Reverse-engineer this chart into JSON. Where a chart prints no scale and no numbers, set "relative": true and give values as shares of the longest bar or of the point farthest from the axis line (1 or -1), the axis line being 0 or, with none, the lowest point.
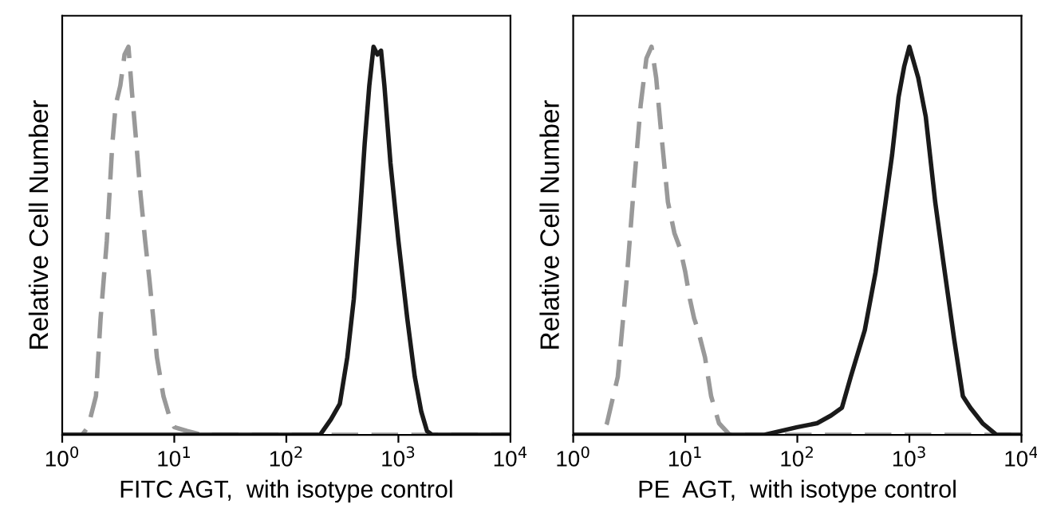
{
  "chart_data": [
    {
      "type": "line",
      "xlabel": "FITC AGT,  with isotype control",
      "ylabel": "Relative Cell Number",
      "relative": true,
      "log": "x",
      "xlim": [
        1,
        10000
      ],
      "xticks": [
        {
          "value": 1,
          "label": "10$^{0}$"
        },
        {
          "value": 10,
          "label": "10$^{1}$"
        },
        {
          "value": 100,
          "label": "10$^{2}$"
        },
        {
          "value": 1000,
          "label": "10$^{3}$"
        },
        {
          "value": 10000,
          "label": "10$^{4}$"
        }
      ],
      "tick_labels": "x",
      "grid": false,
      "legend": false,
      "series": [
        {
          "color": "#999999",
          "line_style": "dashed",
          "x": [
            1,
            1.5,
            1.7,
            2.0,
            2.2,
            2.5,
            2.8,
            3.0,
            3.3,
            3.6,
            3.9,
            4.2,
            4.5,
            5.0,
            5.5,
            6,
            6.5,
            7,
            8,
            9,
            10,
            13,
            18,
            10000
          ],
          "values": [
            0,
            0,
            0.02,
            0.1,
            0.3,
            0.5,
            0.75,
            0.85,
            0.9,
            0.98,
            1.0,
            0.88,
            0.78,
            0.62,
            0.5,
            0.4,
            0.3,
            0.2,
            0.1,
            0.05,
            0.02,
            0.01,
            0,
            0
          ]
        },
        {
          "color": "#1a1a1a",
          "line_style": "solid",
          "x": [
            1,
            200,
            250,
            300,
            350,
            400,
            450,
            500,
            550,
            600,
            650,
            700,
            750,
            850,
            1000,
            1200,
            1400,
            1600,
            1800,
            2000,
            10000
          ],
          "values": [
            0,
            0,
            0.04,
            0.08,
            0.2,
            0.35,
            0.55,
            0.75,
            0.9,
            1.0,
            0.98,
            0.99,
            0.9,
            0.7,
            0.5,
            0.3,
            0.15,
            0.06,
            0.01,
            0,
            0
          ]
        }
      ]
    },
    {
      "type": "line",
      "xlabel": "PE  AGT,  with isotype control",
      "ylabel": "Relative Cell Number",
      "relative": true,
      "log": "x",
      "xlim": [
        1,
        10000
      ],
      "xticks": [
        {
          "value": 1,
          "label": "10$^{0}$"
        },
        {
          "value": 10,
          "label": "10$^{1}$"
        },
        {
          "value": 100,
          "label": "10$^{2}$"
        },
        {
          "value": 1000,
          "label": "10$^{3}$"
        },
        {
          "value": 10000,
          "label": "10$^{4}$"
        }
      ],
      "tick_labels": "x",
      "grid": false,
      "legend": false,
      "series": [
        {
          "color": "#999999",
          "line_style": "dashed",
          "x": [
            1,
            1.8,
            2,
            2.5,
            3,
            3.5,
            4,
            4.5,
            5,
            5.5,
            6,
            7,
            8,
            9,
            10,
            11,
            12,
            13,
            15,
            17,
            20,
            25,
            10000
          ],
          "values": [
            0,
            0,
            0.03,
            0.15,
            0.4,
            0.65,
            0.85,
            0.97,
            1.0,
            0.92,
            0.8,
            0.6,
            0.52,
            0.48,
            0.42,
            0.35,
            0.3,
            0.27,
            0.2,
            0.1,
            0.03,
            0,
            0
          ]
        },
        {
          "color": "#1a1a1a",
          "line_style": "solid",
          "x": [
            1,
            50,
            100,
            150,
            200,
            250,
            300,
            400,
            500,
            600,
            700,
            800,
            900,
            1000,
            1200,
            1400,
            1700,
            2000,
            2500,
            3000,
            3500,
            4500,
            6000,
            10000
          ],
          "values": [
            0,
            0,
            0.02,
            0.03,
            0.05,
            0.07,
            0.15,
            0.27,
            0.42,
            0.58,
            0.72,
            0.87,
            0.95,
            1.0,
            0.92,
            0.82,
            0.6,
            0.45,
            0.25,
            0.1,
            0.07,
            0.03,
            0,
            0
          ]
        }
      ]
    }
  ]
}
